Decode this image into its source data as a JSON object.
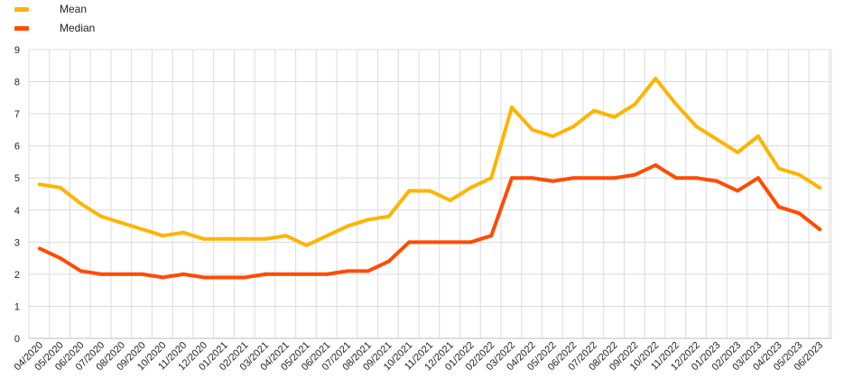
{
  "chart_data": {
    "type": "line",
    "title": "",
    "xlabel": "",
    "ylabel": "",
    "ylim": [
      0,
      9
    ],
    "yticks": [
      0,
      1,
      2,
      3,
      4,
      5,
      6,
      7,
      8,
      9
    ],
    "grid": true,
    "legend_position": "top-left",
    "categories": [
      "04/2020",
      "05/2020",
      "06/2020",
      "07/2020",
      "08/2020",
      "09/2020",
      "10/2020",
      "11/2020",
      "12/2020",
      "01/2021",
      "02/2021",
      "03/2021",
      "04/2021",
      "05/2021",
      "06/2021",
      "07/2021",
      "08/2021",
      "09/2021",
      "10/2021",
      "11/2021",
      "12/2021",
      "01/2022",
      "02/2022",
      "03/2022",
      "04/2022",
      "05/2022",
      "06/2022",
      "07/2022",
      "08/2022",
      "09/2022",
      "10/2022",
      "11/2022",
      "12/2022",
      "01/2023",
      "02/2023",
      "03/2023",
      "04/2023",
      "05/2023",
      "06/2023"
    ],
    "series": [
      {
        "name": "Mean",
        "color": "#FFB400",
        "values": [
          4.8,
          4.7,
          4.2,
          3.8,
          3.6,
          3.4,
          3.2,
          3.3,
          3.1,
          3.1,
          3.1,
          3.1,
          3.2,
          2.9,
          3.2,
          3.5,
          3.7,
          3.8,
          4.6,
          4.6,
          4.3,
          4.7,
          5.0,
          7.2,
          6.5,
          6.3,
          6.6,
          7.1,
          6.9,
          7.3,
          8.1,
          7.3,
          6.6,
          6.2,
          5.8,
          6.3,
          5.3,
          5.1,
          4.7
        ]
      },
      {
        "name": "Median",
        "color": "#FF4B00",
        "values": [
          2.8,
          2.5,
          2.1,
          2.0,
          2.0,
          2.0,
          1.9,
          2.0,
          1.9,
          1.9,
          1.9,
          2.0,
          2.0,
          2.0,
          2.0,
          2.1,
          2.1,
          2.4,
          3.0,
          3.0,
          3.0,
          3.0,
          3.2,
          5.0,
          5.0,
          4.9,
          5.0,
          5.0,
          5.0,
          5.1,
          5.4,
          5.0,
          5.0,
          4.9,
          4.6,
          5.0,
          4.1,
          3.9,
          3.4
        ]
      }
    ]
  }
}
